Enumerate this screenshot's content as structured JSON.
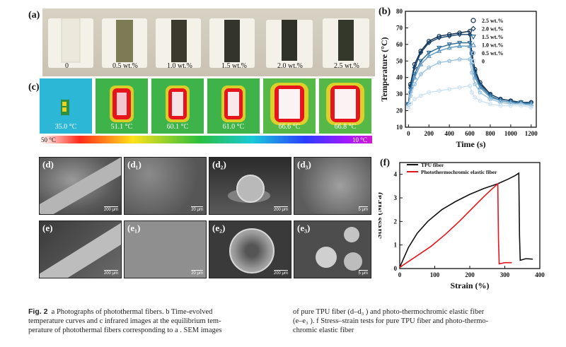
{
  "panels": {
    "a": "(a)",
    "b": "(b)",
    "c": "(c)",
    "d": "(d)",
    "d1": "(d₁)",
    "d2": "(d₂)",
    "d3": "(d₃)",
    "e": "(e)",
    "e1": "(e₁)",
    "e2": "(e₂)",
    "e3": "(e₃)",
    "f": "(f)"
  },
  "photo_labels": [
    "0",
    "0.5 wt.%",
    "1.0 wt.%",
    "1.5 wt.%",
    "2.0 wt.%",
    "2.5 wt.%"
  ],
  "ir_temps": [
    "35.0 °C",
    "51.1 °C",
    "60.1 °C",
    "61.0 °C",
    "66.6 °C",
    "66.8 °C"
  ],
  "colorbar": {
    "high": "50 °C",
    "low": "10 °C"
  },
  "sem_scales": {
    "d": "200 μm",
    "d1": "20 μm",
    "d2": "200 μm",
    "d3": "5 μm",
    "e": "200 μm",
    "e1": "20 μm",
    "e2": "200 μm",
    "e3": "5 μm"
  },
  "colors": {
    "tpu": "#111111",
    "photo": "#e8141c",
    "ir_red": "#e6141c",
    "green": "#3fb33a"
  },
  "chart_data": [
    {
      "id": "b",
      "type": "line",
      "xlabel": "Time (s)",
      "ylabel": "Temperature (°C)",
      "xlim": [
        -30,
        1250
      ],
      "ylim": [
        10,
        80
      ],
      "xticks": [
        0,
        200,
        400,
        600,
        800,
        1000,
        1200
      ],
      "yticks": [
        10,
        20,
        30,
        40,
        50,
        60,
        70,
        80
      ],
      "legend_position": "top-right",
      "series": [
        {
          "name": "2.5 wt.%",
          "color": "#0d2d4d",
          "marker": "circle",
          "x": [
            0,
            20,
            60,
            120,
            200,
            300,
            400,
            500,
            600,
            620,
            650,
            700,
            800,
            900,
            1000,
            1100,
            1200
          ],
          "y": [
            24,
            36,
            48,
            56,
            62,
            65,
            66,
            67,
            68,
            55,
            45,
            37,
            30,
            27,
            26,
            25,
            25
          ]
        },
        {
          "name": "2.0 wt.%",
          "color": "#143f66",
          "marker": "diamond",
          "x": [
            0,
            20,
            60,
            120,
            200,
            300,
            400,
            500,
            600,
            620,
            650,
            700,
            800,
            900,
            1000,
            1100,
            1200
          ],
          "y": [
            24,
            35,
            46,
            55,
            61,
            64,
            65,
            66,
            66,
            54,
            44,
            36,
            30,
            27,
            26,
            25,
            25
          ]
        },
        {
          "name": "1.5 wt.%",
          "color": "#2b6a96",
          "marker": "triangle-down",
          "x": [
            0,
            20,
            60,
            120,
            200,
            300,
            400,
            500,
            600,
            620,
            650,
            700,
            800,
            900,
            1000,
            1100,
            1200
          ],
          "y": [
            24,
            33,
            42,
            50,
            55,
            58,
            60,
            61,
            61,
            50,
            42,
            35,
            29,
            26,
            25,
            25,
            24
          ]
        },
        {
          "name": "1.0 wt.%",
          "color": "#5e98c2",
          "marker": "triangle-up",
          "x": [
            0,
            20,
            60,
            120,
            200,
            300,
            400,
            500,
            600,
            620,
            650,
            700,
            800,
            900,
            1000,
            1100,
            1200
          ],
          "y": [
            24,
            32,
            40,
            48,
            53,
            56,
            58,
            59,
            59,
            49,
            40,
            34,
            28,
            26,
            25,
            24,
            24
          ]
        },
        {
          "name": "0.5 wt.%",
          "color": "#9cc4e2",
          "marker": "pentagon",
          "x": [
            0,
            20,
            60,
            120,
            200,
            300,
            400,
            500,
            600,
            620,
            650,
            700,
            800,
            900,
            1000,
            1100,
            1200
          ],
          "y": [
            23,
            29,
            36,
            42,
            46,
            49,
            50,
            51,
            51,
            43,
            36,
            31,
            27,
            25,
            24,
            24,
            23
          ]
        },
        {
          "name": "0",
          "color": "#cfe3f3",
          "marker": "hexagon",
          "x": [
            0,
            20,
            60,
            120,
            200,
            300,
            400,
            500,
            600,
            620,
            650,
            700,
            800,
            900,
            1000,
            1100,
            1200
          ],
          "y": [
            22,
            24,
            27,
            29,
            31,
            32,
            33,
            34,
            35,
            31,
            28,
            26,
            24,
            23,
            23,
            23,
            22
          ]
        }
      ]
    },
    {
      "id": "f",
      "type": "line",
      "xlabel": "Strain (%)",
      "ylabel": "Stress (MPa)",
      "xlim": [
        0,
        400
      ],
      "ylim": [
        0,
        4.5
      ],
      "xticks": [
        0,
        100,
        200,
        300,
        400
      ],
      "yticks": [
        0,
        1,
        2,
        3,
        4
      ],
      "legend_position": "top-left",
      "series": [
        {
          "name": "TPU fiber",
          "color": "#111111",
          "x": [
            0,
            10,
            25,
            50,
            80,
            120,
            160,
            200,
            240,
            280,
            310,
            330,
            340,
            342,
            344,
            360,
            380
          ],
          "y": [
            0.05,
            0.4,
            0.9,
            1.5,
            2.0,
            2.5,
            2.85,
            3.15,
            3.4,
            3.6,
            3.8,
            3.95,
            4.05,
            1.4,
            0.35,
            0.42,
            0.4
          ]
        },
        {
          "name": "Photothermochromic elastic fiber",
          "color": "#e8141c",
          "x": [
            0,
            20,
            50,
            90,
            130,
            170,
            210,
            240,
            265,
            280,
            282,
            284,
            300,
            320
          ],
          "y": [
            0.05,
            0.25,
            0.55,
            0.95,
            1.45,
            2.0,
            2.6,
            3.05,
            3.4,
            3.6,
            1.2,
            0.2,
            0.25,
            0.25
          ]
        }
      ]
    }
  ],
  "caption": {
    "fig": "Fig. 2",
    "col1_line1": "a Photographs of photothermal fibers. b Time-evolved",
    "col1_line2": "temperature curves and c infrared images at the equilibrium tem-",
    "col1_line3": "perature of photothermal fibers corresponding to a . SEM images",
    "col2_line1": "of pure TPU fiber (d–d₃ ) and photo-thermochromic elastic fiber",
    "col2_line2": "(e–e₃ ). f Stress–strain tests for pure TPU fiber and photo-thermo-",
    "col2_line3": "chromic elastic fiber"
  }
}
